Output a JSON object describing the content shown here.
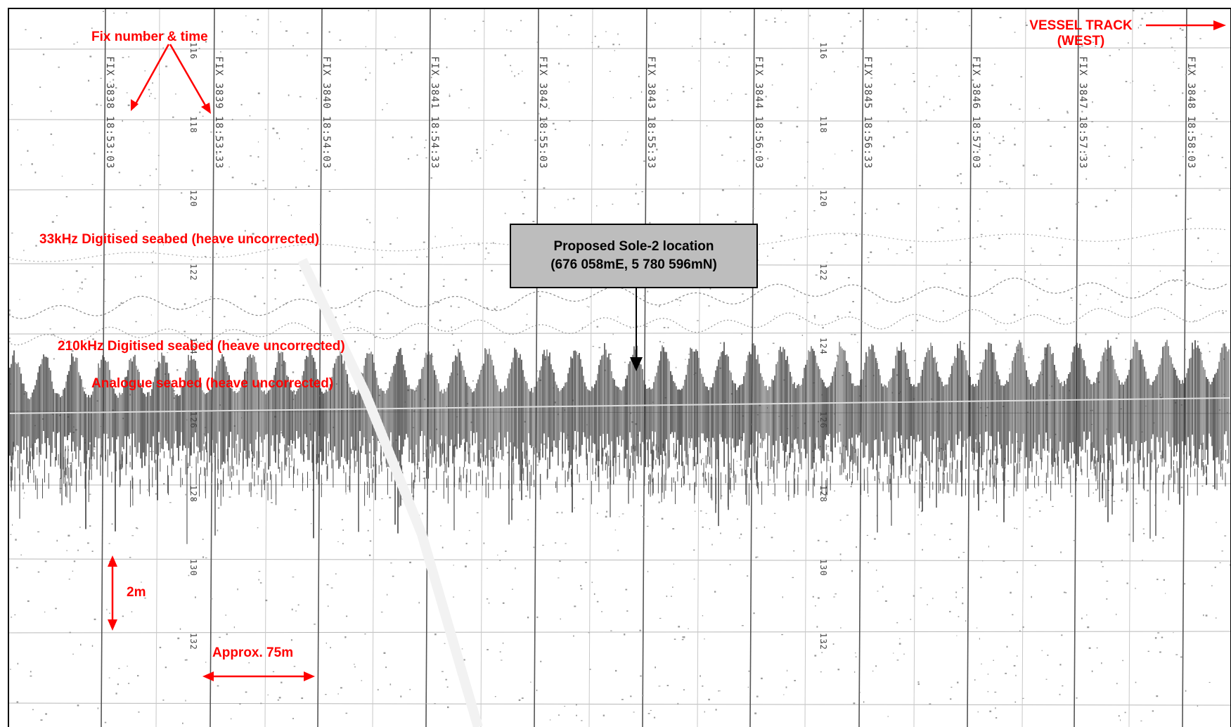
{
  "annotations": {
    "fix_label": "Fix number & time",
    "vessel_track_line1": "VESSEL TRACK",
    "vessel_track_line2": "(WEST)",
    "digitised_33": "33kHz Digitised seabed (heave uncorrected)",
    "digitised_210": "210kHz Digitised seabed (heave uncorrected)",
    "analogue": "Analogue seabed (heave uncorrected)",
    "scale_vertical": "2m",
    "scale_horizontal": "Approx. 75m"
  },
  "callout": {
    "line1": "Proposed Sole-2 location",
    "line2": "(676 058mE, 5 780 596mN)"
  },
  "fixes": [
    {
      "word": "FIX",
      "number": "3838",
      "time": "18:53:03"
    },
    {
      "word": "FIX",
      "number": "3839",
      "time": "18:53:33"
    },
    {
      "word": "FIX",
      "number": "3840",
      "time": "18:54:03"
    },
    {
      "word": "FIX",
      "number": "3841",
      "time": "18:54:33"
    },
    {
      "word": "FIX",
      "number": "3842",
      "time": "18:55:03"
    },
    {
      "word": "FIX",
      "number": "3843",
      "time": "18:55:33"
    },
    {
      "word": "FIX",
      "number": "3844",
      "time": "18:56:03"
    },
    {
      "word": "FIX",
      "number": "3845",
      "time": "18:56:33"
    },
    {
      "word": "FIX",
      "number": "3846",
      "time": "18:57:03"
    },
    {
      "word": "FIX",
      "number": "3847",
      "time": "18:57:33"
    },
    {
      "word": "FIX",
      "number": "3848",
      "time": "18:58:03"
    }
  ],
  "depth_labels": [
    "116",
    "118",
    "120",
    "122",
    "124",
    "126",
    "128",
    "130",
    "132"
  ],
  "colors": {
    "annotation": "#ff0000",
    "callout_fill": "#bdbdbd",
    "trace": "#3a3a3a",
    "grid": "#777777"
  }
}
